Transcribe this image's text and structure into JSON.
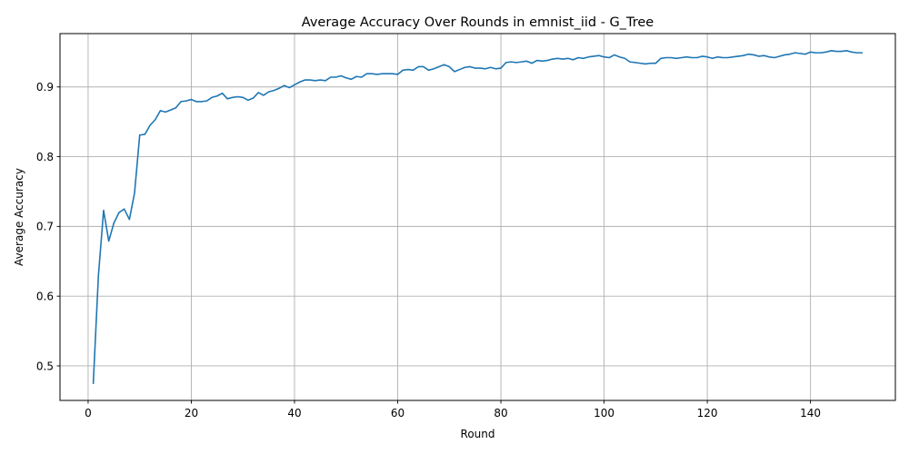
{
  "chart_data": {
    "type": "line",
    "title": "Average Accuracy Over Rounds in emnist_iid - G_Tree",
    "xlabel": "Round",
    "ylabel": "Average Accuracy",
    "xlim": [
      -5.45,
      156.45
    ],
    "ylim": [
      0.4505,
      0.9765
    ],
    "xticks": [
      0,
      20,
      40,
      60,
      80,
      100,
      120,
      140
    ],
    "xtick_labels": [
      "0",
      "20",
      "40",
      "60",
      "80",
      "100",
      "120",
      "140"
    ],
    "yticks": [
      0.5,
      0.6,
      0.7,
      0.8,
      0.9
    ],
    "ytick_labels": [
      "0.5",
      "0.6",
      "0.7",
      "0.8",
      "0.9"
    ],
    "grid": true,
    "series": [
      {
        "color": "#1f77b4",
        "x": [
          1,
          2,
          3,
          4,
          5,
          6,
          7,
          8,
          9,
          10,
          11,
          12,
          13,
          14,
          15,
          16,
          17,
          18,
          19,
          20,
          21,
          22,
          23,
          24,
          25,
          26,
          27,
          28,
          29,
          30,
          31,
          32,
          33,
          34,
          35,
          36,
          37,
          38,
          39,
          40,
          41,
          42,
          43,
          44,
          45,
          46,
          47,
          48,
          49,
          50,
          51,
          52,
          53,
          54,
          55,
          56,
          57,
          58,
          59,
          60,
          61,
          62,
          63,
          64,
          65,
          66,
          67,
          68,
          69,
          70,
          71,
          72,
          73,
          74,
          75,
          76,
          77,
          78,
          79,
          80,
          81,
          82,
          83,
          84,
          85,
          86,
          87,
          88,
          89,
          90,
          91,
          92,
          93,
          94,
          95,
          96,
          97,
          98,
          99,
          100,
          101,
          102,
          103,
          104,
          105,
          106,
          107,
          108,
          109,
          110,
          111,
          112,
          113,
          114,
          115,
          116,
          117,
          118,
          119,
          120,
          121,
          122,
          123,
          124,
          125,
          126,
          127,
          128,
          129,
          130,
          131,
          132,
          133,
          134,
          135,
          136,
          137,
          138,
          139,
          140,
          141,
          142,
          143,
          144,
          145,
          146,
          147,
          148,
          149,
          150
        ],
        "y": [
          0.475,
          0.63,
          0.723,
          0.679,
          0.705,
          0.72,
          0.725,
          0.71,
          0.748,
          0.831,
          0.832,
          0.845,
          0.853,
          0.866,
          0.864,
          0.867,
          0.87,
          0.879,
          0.88,
          0.882,
          0.879,
          0.879,
          0.88,
          0.885,
          0.887,
          0.891,
          0.883,
          0.885,
          0.886,
          0.885,
          0.881,
          0.884,
          0.892,
          0.888,
          0.893,
          0.895,
          0.898,
          0.902,
          0.899,
          0.903,
          0.907,
          0.91,
          0.91,
          0.909,
          0.91,
          0.909,
          0.914,
          0.914,
          0.916,
          0.913,
          0.911,
          0.915,
          0.914,
          0.919,
          0.919,
          0.918,
          0.919,
          0.919,
          0.919,
          0.918,
          0.924,
          0.925,
          0.924,
          0.929,
          0.929,
          0.924,
          0.926,
          0.929,
          0.932,
          0.929,
          0.922,
          0.925,
          0.928,
          0.929,
          0.927,
          0.927,
          0.926,
          0.928,
          0.926,
          0.927,
          0.935,
          0.936,
          0.935,
          0.936,
          0.937,
          0.934,
          0.938,
          0.937,
          0.938,
          0.94,
          0.941,
          0.94,
          0.941,
          0.939,
          0.942,
          0.941,
          0.943,
          0.944,
          0.945,
          0.943,
          0.942,
          0.946,
          0.943,
          0.941,
          0.936,
          0.935,
          0.934,
          0.933,
          0.934,
          0.934,
          0.941,
          0.942,
          0.942,
          0.941,
          0.942,
          0.943,
          0.942,
          0.942,
          0.944,
          0.943,
          0.941,
          0.943,
          0.942,
          0.942,
          0.943,
          0.944,
          0.945,
          0.947,
          0.946,
          0.944,
          0.945,
          0.943,
          0.942,
          0.944,
          0.946,
          0.947,
          0.949,
          0.948,
          0.947,
          0.95,
          0.949,
          0.949,
          0.95,
          0.952,
          0.951,
          0.951,
          0.952,
          0.95,
          0.949,
          0.949
        ]
      }
    ]
  }
}
